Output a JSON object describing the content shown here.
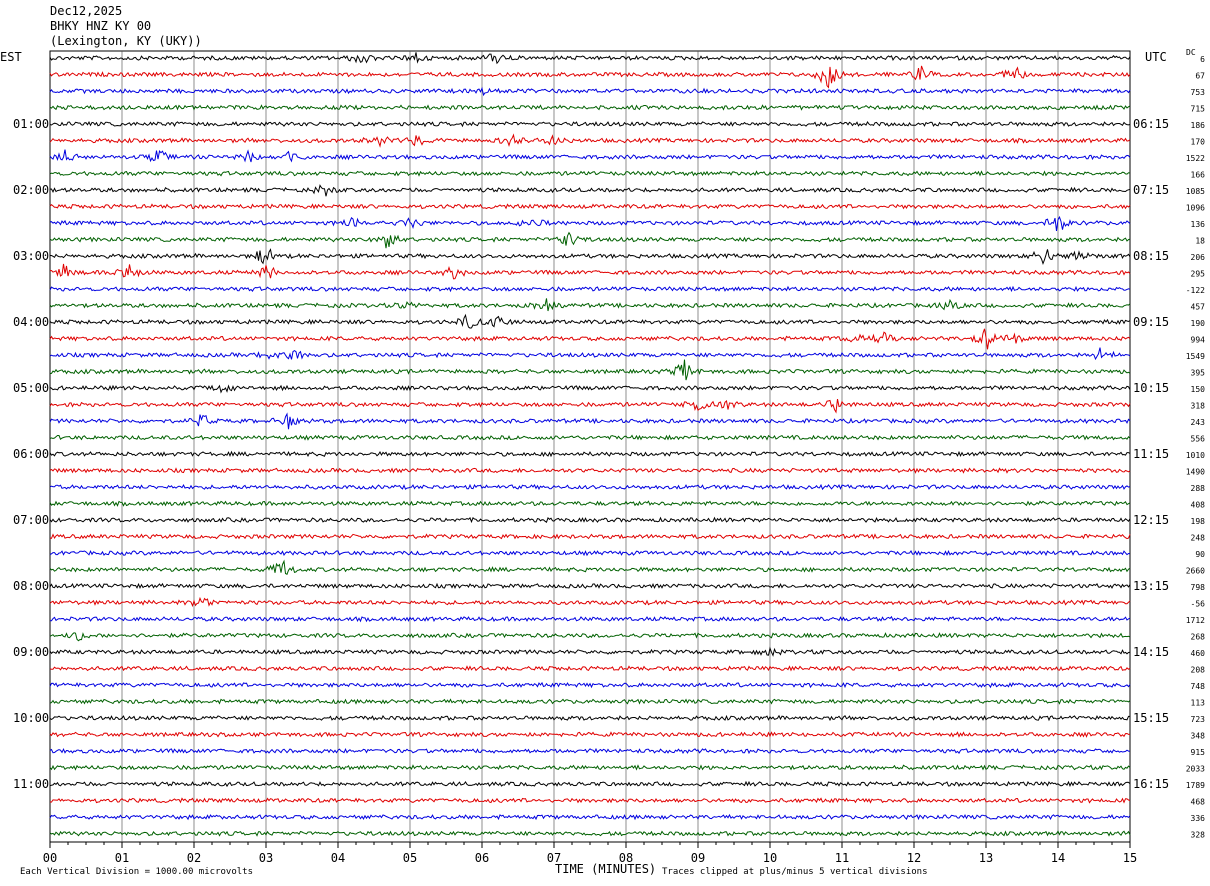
{
  "header": {
    "date": "Dec12,2025",
    "station": "BHKY HNZ KY 00",
    "location": "(Lexington, KY (UKY))"
  },
  "left_timezone": "EST",
  "right_timezone": "UTC",
  "dc_label": "DC",
  "xaxis_title": "TIME (MINUTES)",
  "footer_left": "Each Vertical Division = 1000.00 microvolts",
  "footer_right": "Traces clipped at plus/minus 5 vertical divisions",
  "colors": {
    "trace_cycle": [
      "#000000",
      "#e00000",
      "#0000e0",
      "#006000"
    ],
    "grid": "#000000"
  },
  "chart_data": {
    "type": "line",
    "title": "BHKY HNZ KY 00",
    "xlabel": "TIME (MINUTES)",
    "xlim": [
      0,
      15
    ],
    "x_ticks": [
      "00",
      "01",
      "02",
      "03",
      "04",
      "05",
      "06",
      "07",
      "08",
      "09",
      "10",
      "11",
      "12",
      "13",
      "14",
      "15"
    ],
    "rows_per_hour": 4,
    "row_count": 48,
    "left_hour_labels": [
      "01:00",
      "02:00",
      "03:00",
      "04:00",
      "05:00",
      "06:00",
      "07:00",
      "08:00",
      "09:00",
      "10:00",
      "11:00"
    ],
    "right_hour_labels": [
      "06:15",
      "07:15",
      "08:15",
      "09:15",
      "10:15",
      "11:15",
      "12:15",
      "13:15",
      "14:15",
      "15:15",
      "16:15"
    ],
    "dc_offsets": [
      "6",
      "67",
      "753",
      "715",
      "186",
      "170",
      "1522",
      "166",
      "1085",
      "1096",
      "136",
      "18",
      "206",
      "295",
      "-122",
      "457",
      "190",
      "994",
      "1549",
      "395",
      "150",
      "318",
      "243",
      "556",
      "1010",
      "1490",
      "288",
      "408",
      "198",
      "248",
      "90",
      "2660",
      "798",
      "-56",
      "1712",
      "268",
      "460",
      "208",
      "748",
      "113",
      "723",
      "348",
      "915",
      "2033",
      "1789",
      "468",
      "336",
      "328"
    ],
    "events": [
      {
        "row": 0,
        "minute": 4.3,
        "amp": 0.5
      },
      {
        "row": 0,
        "minute": 5.1,
        "amp": 0.4
      },
      {
        "row": 0,
        "minute": 6.2,
        "amp": 0.5
      },
      {
        "row": 1,
        "minute": 10.8,
        "amp": 1.4
      },
      {
        "row": 1,
        "minute": 12.1,
        "amp": 0.5
      },
      {
        "row": 1,
        "minute": 13.4,
        "amp": 0.6
      },
      {
        "row": 2,
        "minute": 6.0,
        "amp": 0.3
      },
      {
        "row": 5,
        "minute": 4.6,
        "amp": 0.6
      },
      {
        "row": 5,
        "minute": 5.1,
        "amp": 0.4
      },
      {
        "row": 5,
        "minute": 6.4,
        "amp": 0.4
      },
      {
        "row": 5,
        "minute": 7.0,
        "amp": 0.4
      },
      {
        "row": 6,
        "minute": 0.2,
        "amp": 0.5
      },
      {
        "row": 6,
        "minute": 1.5,
        "amp": 0.6
      },
      {
        "row": 6,
        "minute": 2.8,
        "amp": 0.5
      },
      {
        "row": 6,
        "minute": 3.3,
        "amp": 0.4
      },
      {
        "row": 8,
        "minute": 3.8,
        "amp": 0.5
      },
      {
        "row": 10,
        "minute": 4.2,
        "amp": 0.4
      },
      {
        "row": 10,
        "minute": 5.0,
        "amp": 0.4
      },
      {
        "row": 10,
        "minute": 6.7,
        "amp": 0.5
      },
      {
        "row": 10,
        "minute": 14.0,
        "amp": 1.0
      },
      {
        "row": 11,
        "minute": 4.7,
        "amp": 0.7
      },
      {
        "row": 11,
        "minute": 7.2,
        "amp": 0.7
      },
      {
        "row": 12,
        "minute": 3.0,
        "amp": 0.8
      },
      {
        "row": 12,
        "minute": 13.8,
        "amp": 1.0
      },
      {
        "row": 12,
        "minute": 14.3,
        "amp": 0.4
      },
      {
        "row": 13,
        "minute": 0.2,
        "amp": 0.5
      },
      {
        "row": 13,
        "minute": 1.1,
        "amp": 0.6
      },
      {
        "row": 13,
        "minute": 3.0,
        "amp": 0.6
      },
      {
        "row": 13,
        "minute": 5.6,
        "amp": 0.5
      },
      {
        "row": 15,
        "minute": 5.0,
        "amp": 0.4
      },
      {
        "row": 15,
        "minute": 6.9,
        "amp": 0.5
      },
      {
        "row": 15,
        "minute": 12.5,
        "amp": 0.4
      },
      {
        "row": 16,
        "minute": 5.8,
        "amp": 0.6
      },
      {
        "row": 16,
        "minute": 6.2,
        "amp": 0.4
      },
      {
        "row": 17,
        "minute": 11.2,
        "amp": 0.5
      },
      {
        "row": 17,
        "minute": 11.6,
        "amp": 0.5
      },
      {
        "row": 17,
        "minute": 13.0,
        "amp": 0.8
      },
      {
        "row": 17,
        "minute": 13.4,
        "amp": 0.5
      },
      {
        "row": 18,
        "minute": 3.0,
        "amp": 0.4
      },
      {
        "row": 18,
        "minute": 3.4,
        "amp": 0.5
      },
      {
        "row": 18,
        "minute": 14.6,
        "amp": 0.6
      },
      {
        "row": 19,
        "minute": 8.8,
        "amp": 0.8
      },
      {
        "row": 20,
        "minute": 2.4,
        "amp": 0.4
      },
      {
        "row": 21,
        "minute": 9.0,
        "amp": 0.6
      },
      {
        "row": 21,
        "minute": 9.4,
        "amp": 0.4
      },
      {
        "row": 21,
        "minute": 10.9,
        "amp": 0.5
      },
      {
        "row": 22,
        "minute": 2.1,
        "amp": 0.6
      },
      {
        "row": 22,
        "minute": 3.3,
        "amp": 0.5
      },
      {
        "row": 31,
        "minute": 3.2,
        "amp": 0.9
      },
      {
        "row": 33,
        "minute": 2.1,
        "amp": 0.5
      },
      {
        "row": 35,
        "minute": 0.4,
        "amp": 0.4
      },
      {
        "row": 36,
        "minute": 10.0,
        "amp": 0.3
      }
    ]
  }
}
